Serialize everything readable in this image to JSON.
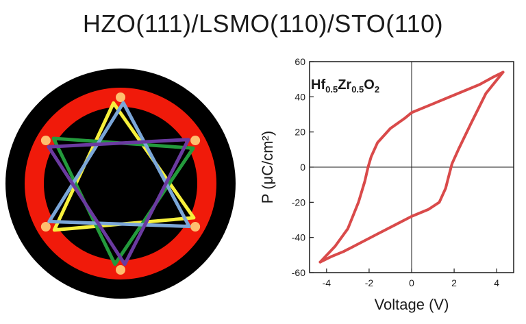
{
  "title": "HZO(111)/LSMO(110)/STO(110)",
  "colors": {
    "ring": "#f01a0a",
    "ring_hot": "#ffd27a",
    "disc": "#000000",
    "triangle_yellow": "#f7f03c",
    "triangle_green": "#239a3c",
    "triangle_blue": "#7aa6d8",
    "triangle_purple": "#6a3aa0",
    "loop": "#d94a4a"
  },
  "pole_figure": {
    "triangles": [
      {
        "name": "yellow",
        "color_key": "triangle_yellow"
      },
      {
        "name": "green",
        "color_key": "triangle_green"
      },
      {
        "name": "blue",
        "color_key": "triangle_blue"
      },
      {
        "name": "purple",
        "color_key": "triangle_purple"
      }
    ]
  },
  "chart_data": {
    "type": "line",
    "title": "",
    "xlabel": "Voltage (V)",
    "ylabel": "P (μC/cm²)",
    "annotation": "Hf0.5Zr0.5O2",
    "annotation_parts": [
      "Hf",
      "0.5",
      "Zr",
      "0.5",
      "O",
      "2"
    ],
    "xlim": [
      -4.8,
      4.8
    ],
    "ylim": [
      -60,
      60
    ],
    "x_ticks": [
      -4,
      -2,
      0,
      2,
      4
    ],
    "y_ticks": [
      -60,
      -40,
      -20,
      0,
      20,
      40,
      60
    ],
    "grid": false,
    "crosshair_at_origin": true,
    "series": [
      {
        "x": [
          4.3,
          3.5,
          2.8,
          2.2,
          1.9,
          1.75,
          1.6,
          1.3,
          0.8,
          0.0,
          -0.8,
          -1.6,
          -2.4,
          -3.2,
          -3.8,
          -4.3
        ],
        "y": [
          54,
          42,
          25,
          10,
          2,
          -5,
          -12,
          -20,
          -24,
          -28,
          -33,
          -38,
          -43,
          -48,
          -51,
          -54
        ]
      },
      {
        "x": [
          -4.3,
          -3.6,
          -3.0,
          -2.5,
          -2.2,
          -2.05,
          -1.9,
          -1.6,
          -1.0,
          -0.3,
          0.0,
          0.8,
          1.6,
          2.4,
          3.2,
          3.8,
          4.3
        ],
        "y": [
          -54,
          -45,
          -35,
          -20,
          -8,
          0,
          6,
          14,
          22,
          28,
          31,
          35,
          39,
          43,
          47,
          51,
          54
        ]
      }
    ]
  }
}
